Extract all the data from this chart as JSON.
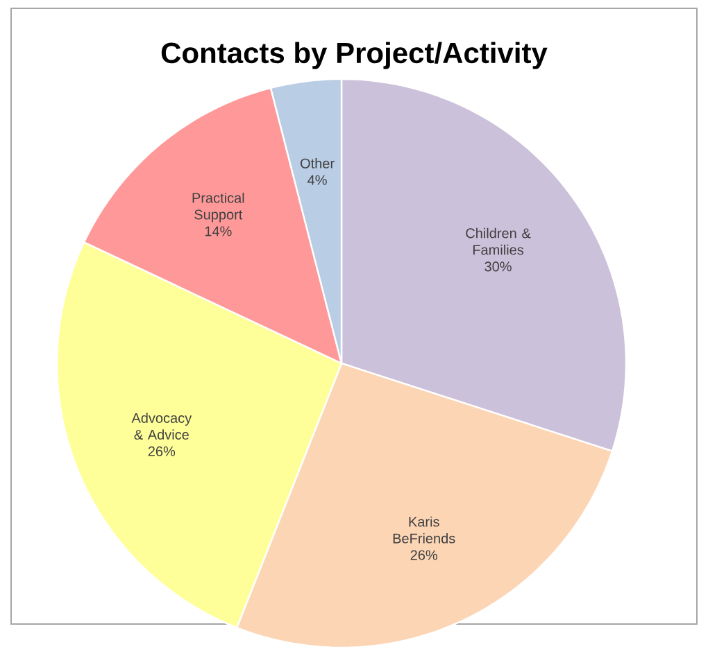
{
  "chart_data": {
    "type": "pie",
    "title": "Contacts by Project/Activity",
    "categories": [
      "Children & Families",
      "Karis BeFriends",
      "Advocacy & Advice",
      "Practical Support",
      "Other"
    ],
    "values": [
      30,
      26,
      26,
      14,
      4
    ],
    "colors": [
      "#ccc1da",
      "#fcd5b5",
      "#ffff99",
      "#ff9999",
      "#b9cde5"
    ],
    "value_labels": [
      "30%",
      "26%",
      "26%",
      "14%",
      "4%"
    ]
  }
}
